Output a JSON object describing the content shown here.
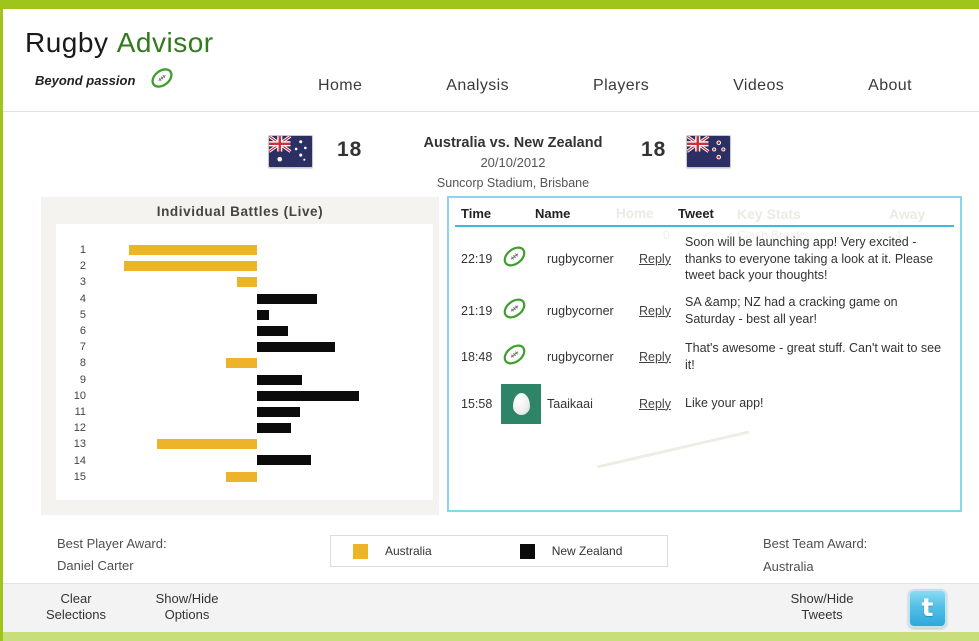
{
  "brand": {
    "title_rugby": "Rugby",
    "title_advisor": "Advisor",
    "tagline": "Beyond passion",
    "logo_icon": "rugby-ball-icon"
  },
  "nav": {
    "items": [
      {
        "label": "Home"
      },
      {
        "label": "Analysis"
      },
      {
        "label": "Players"
      },
      {
        "label": "Videos"
      },
      {
        "label": "About"
      }
    ]
  },
  "match": {
    "home_team": "Australia",
    "away_team": "New Zealand",
    "home_score": "18",
    "away_score": "18",
    "title": "Australia vs. New Zealand",
    "date": "20/10/2012",
    "venue": "Suncorp Stadium, Brisbane",
    "home_flag_icon": "australia-flag-icon",
    "away_flag_icon": "new-zealand-flag-icon"
  },
  "chart_data": {
    "type": "bar",
    "orientation": "horizontal_diverging",
    "title": "Individual Battles (Live)",
    "categories": [
      "1",
      "2",
      "3",
      "4",
      "5",
      "6",
      "7",
      "8",
      "9",
      "10",
      "11",
      "12",
      "13",
      "14",
      "15"
    ],
    "series": [
      {
        "name": "Australia",
        "color": "#ECB32B",
        "direction": "left",
        "values": [
          128,
          133,
          20,
          0,
          0,
          0,
          0,
          31,
          0,
          0,
          0,
          0,
          100,
          0,
          31
        ]
      },
      {
        "name": "New Zealand",
        "color": "#0B0B0B",
        "direction": "right",
        "values": [
          0,
          0,
          0,
          60,
          12,
          31,
          78,
          0,
          45,
          102,
          43,
          34,
          0,
          54,
          0
        ]
      }
    ],
    "value_units": "relative battle strength (estimated px from center)",
    "xlim": [
      -170,
      170
    ],
    "grid": false,
    "legend_position": "bottom-center"
  },
  "tweets": {
    "headers": {
      "time": "Time",
      "name": "Name",
      "tweet": "Tweet"
    },
    "ghost_headers": {
      "home": "Home",
      "key_stats": "Key Stats",
      "away": "Away"
    },
    "ghost_stat_row": {
      "home_value": "0",
      "label": "Clash Breaks",
      "away_value": "4"
    },
    "rows": [
      {
        "time": "22:19",
        "name": "rugbycorner",
        "avatar_icon": "rugby-ball-avatar-icon",
        "reply_label": "Reply",
        "text": "Soon will be launching app! Very excited - thanks to everyone taking a look at it. Please tweet back your thoughts!"
      },
      {
        "time": "21:19",
        "name": "rugbycorner",
        "avatar_icon": "rugby-ball-avatar-icon",
        "reply_label": "Reply",
        "text": "SA &amp; NZ had a cracking game on Saturday - best all year!"
      },
      {
        "time": "18:48",
        "name": "rugbycorner",
        "avatar_icon": "rugby-ball-avatar-icon",
        "reply_label": "Reply",
        "text": "That's awesome - great stuff. Can't wait to see it!"
      },
      {
        "time": "15:58",
        "name": "Taaikaai",
        "avatar_icon": "egg-avatar-icon",
        "reply_label": "Reply",
        "text": "Like your app!"
      }
    ]
  },
  "awards": {
    "player_label": "Best Player Award:",
    "player_value": "Daniel Carter",
    "team_label": "Best Team Award:",
    "team_value": "Australia"
  },
  "legend": {
    "items": [
      {
        "label": "Australia",
        "color": "#ECB32B"
      },
      {
        "label": "New Zealand",
        "color": "#0B0B0B"
      }
    ]
  },
  "footer": {
    "clear_selections": "Clear Selections",
    "show_hide_options": "Show/Hide Options",
    "show_hide_tweets": "Show/Hide Tweets",
    "twitter_icon": "twitter-icon",
    "twitter_glyph": "t"
  },
  "colors": {
    "top_bar": "#9FC51C",
    "bottom_bar": "#C8DE7B",
    "brand_green": "#337A1D",
    "australia_bar": "#ECB32B",
    "new_zealand_bar": "#0B0B0B",
    "tweets_border": "#8AD6EC",
    "tweets_rule": "#45B7DC",
    "egg_avatar_bg": "#2E8467",
    "twitter_blue": "#3FAEDC"
  }
}
